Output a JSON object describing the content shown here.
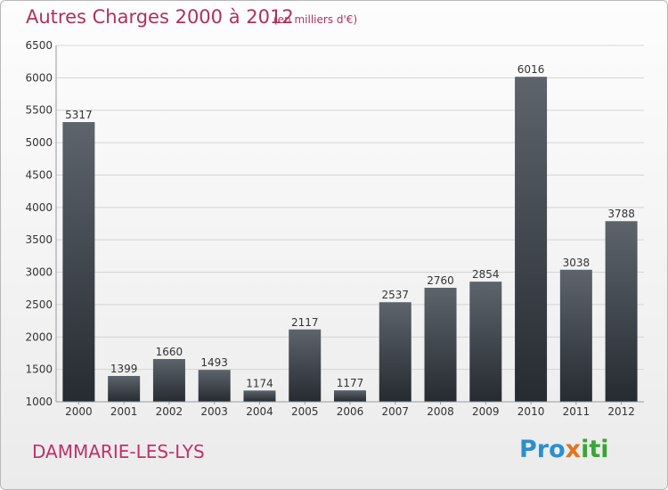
{
  "chart_data": {
    "type": "bar",
    "title": "Autres Charges 2000 à 2012",
    "subtitle": "(en milliers d'€)",
    "categories": [
      "2000",
      "2001",
      "2002",
      "2003",
      "2004",
      "2005",
      "2006",
      "2007",
      "2008",
      "2009",
      "2010",
      "2011",
      "2012"
    ],
    "values": [
      5317,
      1399,
      1660,
      1493,
      1174,
      2117,
      1177,
      2537,
      2760,
      2854,
      6016,
      3038,
      3788
    ],
    "value_labels": [
      "5317",
      "1399",
      "1660",
      "1493",
      "1174",
      "2117",
      "1177",
      "2537",
      "2760",
      "2854",
      "6016",
      "3038",
      "3788"
    ],
    "ylim": [
      1000,
      6500
    ],
    "yticks": [
      1000,
      1500,
      2000,
      2500,
      3000,
      3500,
      4000,
      4500,
      5000,
      5500,
      6000,
      6500
    ],
    "ytick_labels": [
      "1000",
      "1500",
      "2000",
      "2500",
      "3000",
      "3500",
      "4000",
      "4500",
      "5000",
      "5500",
      "6000",
      "6500"
    ],
    "grid": true,
    "bar_color_top": "#5d646c",
    "bar_color_bottom": "#262b31",
    "title_color": "#b0305c"
  },
  "footer": {
    "town": "DAMMARIE-LES-LYS",
    "logo_parts": [
      "Pro",
      "x",
      "iti"
    ]
  }
}
